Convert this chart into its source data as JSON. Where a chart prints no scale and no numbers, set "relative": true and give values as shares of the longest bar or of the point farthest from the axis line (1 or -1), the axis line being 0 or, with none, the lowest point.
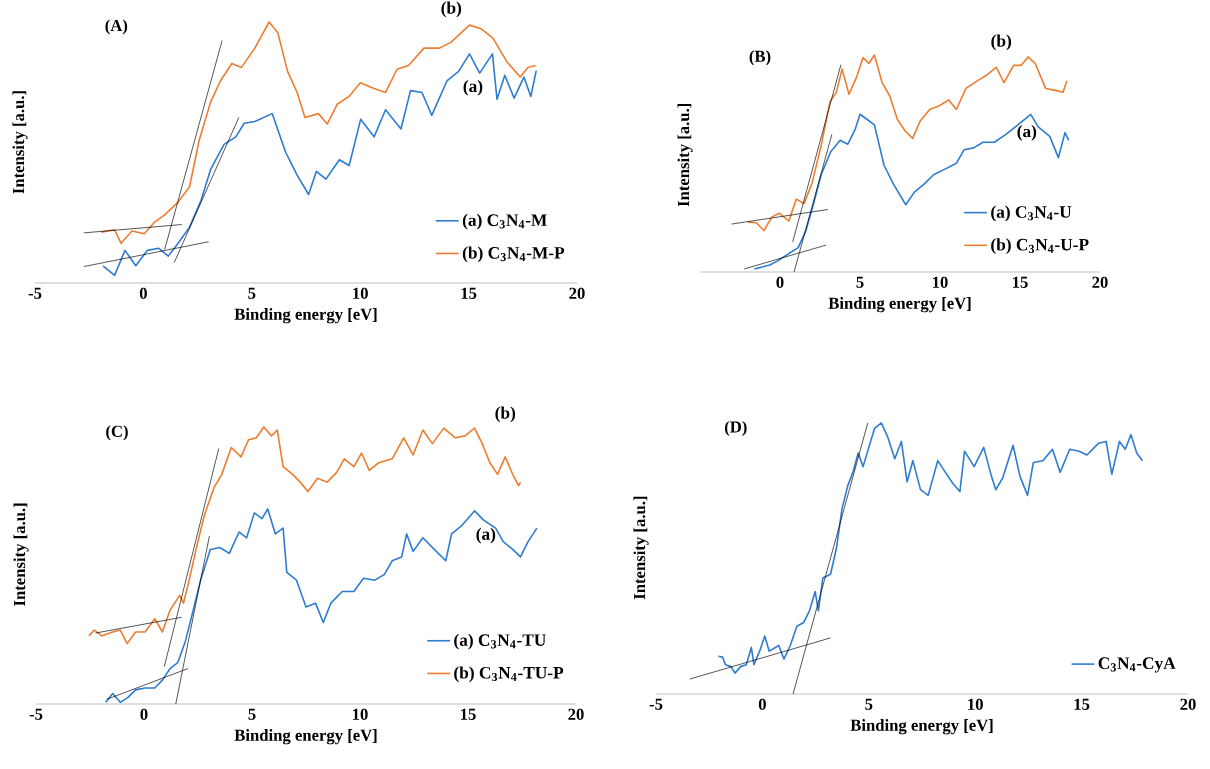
{
  "chart_data": [
    {
      "type": "line",
      "title": "(A)",
      "xlabel": "Binding energy [eV]",
      "ylabel": "Intensity [a.u.]",
      "relative": true,
      "legend": "bottom right",
      "xlim": [
        -5,
        20
      ],
      "xticks": [
        -5,
        0,
        5,
        10,
        15,
        20
      ],
      "annotations": [
        "(b)",
        "(a)"
      ],
      "series": [
        {
          "name": "(a) C$_{3}$N$_{4}$-M",
          "color": "#2e7cd0",
          "x": [
            -1.86,
            -1.33,
            -0.85,
            -0.35,
            0.18,
            0.71,
            1.15,
            1.6,
            2.13,
            2.66,
            3.1,
            3.72,
            4.26,
            4.65,
            5.14,
            5.94,
            6.56,
            7.09,
            7.62,
            7.98,
            8.42,
            9.04,
            9.49,
            10.02,
            10.64,
            11.17,
            11.88,
            12.32,
            12.85,
            13.3,
            14.0,
            14.54,
            15.04,
            15.51,
            16.1,
            16.31,
            16.67,
            17.1,
            17.55,
            17.87,
            18.12
          ],
          "values": [
            0.066,
            0.029,
            0.125,
            0.066,
            0.125,
            0.133,
            0.103,
            0.152,
            0.214,
            0.317,
            0.435,
            0.531,
            0.56,
            0.612,
            0.619,
            0.649,
            0.501,
            0.413,
            0.339,
            0.428,
            0.398,
            0.472,
            0.45,
            0.627,
            0.56,
            0.664,
            0.59,
            0.737,
            0.73,
            0.642,
            0.774,
            0.811,
            0.878,
            0.804,
            0.878,
            0.704,
            0.796,
            0.708,
            0.789,
            0.715,
            0.814
          ]
        },
        {
          "name": "(b) C$_{3}$N$_{4}$-M-P",
          "color": "#ed7d31",
          "x": [
            -1.95,
            -1.33,
            -1.03,
            -0.53,
            0.04,
            0.5,
            0.98,
            1.6,
            2.13,
            2.57,
            3.1,
            3.55,
            4.08,
            4.52,
            5.14,
            5.8,
            6.2,
            6.65,
            7.09,
            7.45,
            8.07,
            8.48,
            8.95,
            9.49,
            10.0,
            10.64,
            11.17,
            11.7,
            12.23,
            12.94,
            13.65,
            14.18,
            15.04,
            15.6,
            16.13,
            16.76,
            17.38,
            17.73,
            18.09
          ],
          "values": [
            0.195,
            0.204,
            0.152,
            0.199,
            0.189,
            0.232,
            0.261,
            0.31,
            0.369,
            0.546,
            0.693,
            0.774,
            0.841,
            0.826,
            0.9,
            1.0,
            0.959,
            0.811,
            0.73,
            0.634,
            0.649,
            0.609,
            0.686,
            0.715,
            0.767,
            0.745,
            0.73,
            0.819,
            0.833,
            0.9,
            0.9,
            0.922,
            0.988,
            0.973,
            0.937,
            0.848,
            0.789,
            0.826,
            0.833
          ]
        },
        {
          "type": "line",
          "color": "#000000",
          "x": [
            -2.75,
            1.77
          ],
          "values": [
            0.192,
            0.224
          ]
        },
        {
          "type": "line",
          "color": "#000000",
          "x": [
            0.98,
            3.63
          ],
          "values": [
            0.128,
            0.929
          ]
        },
        {
          "type": "line",
          "color": "#000000",
          "x": [
            -2.75,
            3.01
          ],
          "values": [
            0.063,
            0.158
          ]
        },
        {
          "type": "line",
          "color": "#000000",
          "x": [
            1.42,
            4.4
          ],
          "values": [
            0.078,
            0.634
          ]
        }
      ]
    },
    {
      "type": "line",
      "title": "(B)",
      "xlabel": "Binding energy [eV]",
      "ylabel": "Intensity [a.u.]",
      "relative": true,
      "legend": "bottom right",
      "xlim": [
        -5,
        20
      ],
      "xticks": [
        0,
        5,
        10,
        15,
        20
      ],
      "annotations": [
        "(b)",
        "(a)"
      ],
      "series": [
        {
          "name": "(a) C$_{3}$N$_{4}$-U",
          "color": "#2e7cd0",
          "x": [
            -1.6,
            -1.12,
            -0.64,
            -0.17,
            0.55,
            1.14,
            1.62,
            2.1,
            2.57,
            3.17,
            3.76,
            4.24,
            4.71,
            5.0,
            5.43,
            5.9,
            6.5,
            7.1,
            7.86,
            8.4,
            8.99,
            9.6,
            10.31,
            11.02,
            11.5,
            12.1,
            12.69,
            13.4,
            14.12,
            14.71,
            15.31,
            15.67,
            16.14,
            16.86,
            17.4,
            17.81,
            18.05
          ],
          "values": [
            0.014,
            0.023,
            0.032,
            0.05,
            0.085,
            0.112,
            0.191,
            0.315,
            0.448,
            0.554,
            0.607,
            0.589,
            0.66,
            0.727,
            0.704,
            0.678,
            0.492,
            0.404,
            0.31,
            0.368,
            0.404,
            0.448,
            0.474,
            0.501,
            0.563,
            0.572,
            0.598,
            0.598,
            0.634,
            0.669,
            0.704,
            0.726,
            0.669,
            0.625,
            0.527,
            0.642,
            0.607
          ]
        },
        {
          "name": "(b) C$_{3}$N$_{4}$-U-P",
          "color": "#ed7d31",
          "x": [
            -2.0,
            -1.48,
            -1.0,
            -0.52,
            -0.05,
            0.55,
            1.02,
            1.5,
            1.98,
            2.57,
            3.12,
            3.52,
            3.88,
            4.31,
            4.79,
            5.19,
            5.55,
            5.9,
            6.38,
            6.86,
            7.33,
            7.81,
            8.29,
            8.76,
            9.36,
            9.95,
            10.55,
            11.02,
            11.62,
            12.33,
            12.93,
            13.52,
            14.0,
            14.6,
            15.07,
            15.5,
            15.95,
            16.6,
            17.21,
            17.69,
            17.93
          ],
          "values": [
            0.23,
            0.227,
            0.191,
            0.253,
            0.271,
            0.235,
            0.336,
            0.315,
            0.404,
            0.581,
            0.784,
            0.828,
            0.935,
            0.819,
            0.899,
            0.988,
            0.961,
            1.0,
            0.873,
            0.811,
            0.704,
            0.651,
            0.616,
            0.696,
            0.749,
            0.766,
            0.793,
            0.749,
            0.846,
            0.881,
            0.908,
            0.943,
            0.873,
            0.952,
            0.952,
            0.991,
            0.961,
            0.846,
            0.837,
            0.828,
            0.881
          ]
        },
        {
          "type": "line",
          "color": "#000000",
          "x": [
            -3.02,
            3.0
          ],
          "values": [
            0.221,
            0.288
          ]
        },
        {
          "type": "line",
          "color": "#000000",
          "x": [
            0.79,
            3.81
          ],
          "values": [
            0.138,
            0.956
          ]
        },
        {
          "type": "line",
          "color": "#000000",
          "x": [
            -2.24,
            2.88
          ],
          "values": [
            0.014,
            0.124
          ]
        },
        {
          "type": "line",
          "color": "#000000",
          "x": [
            0.88,
            3.24
          ],
          "values": [
            0.0,
            0.634
          ]
        }
      ]
    },
    {
      "type": "line",
      "title": "(C)",
      "xlabel": "Binding energy [eV]",
      "ylabel": "Intensity [a.u.]",
      "relative": true,
      "legend": "bottom right",
      "xlim": [
        -5,
        20
      ],
      "xticks": [
        -5,
        0,
        5,
        10,
        15,
        20
      ],
      "annotations": [
        "(b)",
        "(a)"
      ],
      "series": [
        {
          "name": "(a) C$_{3}$N$_{4}$-TU",
          "color": "#2e7cd0",
          "x": [
            -1.77,
            -1.45,
            -1.1,
            -0.74,
            -0.39,
            0.05,
            0.5,
            0.85,
            1.21,
            1.56,
            1.91,
            2.27,
            2.62,
            3.07,
            3.51,
            3.95,
            4.4,
            4.75,
            5.11,
            5.46,
            5.73,
            6.08,
            6.44,
            6.61,
            7.06,
            7.5,
            7.94,
            8.3,
            8.65,
            9.18,
            9.72,
            10.16,
            10.69,
            11.13,
            11.49,
            11.93,
            12.16,
            12.46,
            12.91,
            13.44,
            13.97,
            14.24,
            14.68,
            15.3,
            15.74,
            16.28,
            16.63,
            17.07,
            17.43,
            17.78,
            18.19
          ],
          "values": [
            0.006,
            0.038,
            0.006,
            0.024,
            0.051,
            0.058,
            0.058,
            0.086,
            0.128,
            0.149,
            0.225,
            0.336,
            0.447,
            0.558,
            0.565,
            0.544,
            0.621,
            0.6,
            0.69,
            0.669,
            0.704,
            0.614,
            0.635,
            0.475,
            0.447,
            0.35,
            0.364,
            0.294,
            0.364,
            0.406,
            0.406,
            0.454,
            0.447,
            0.468,
            0.517,
            0.531,
            0.614,
            0.551,
            0.6,
            0.558,
            0.517,
            0.614,
            0.642,
            0.697,
            0.663,
            0.635,
            0.586,
            0.558,
            0.531,
            0.586,
            0.635
          ]
        },
        {
          "name": "(b) C$_{3}$N$_{4}$-TU-P",
          "color": "#ed7d31",
          "x": [
            -2.55,
            -2.3,
            -1.95,
            -1.45,
            -1.1,
            -0.78,
            -0.39,
            0.05,
            0.5,
            0.85,
            1.21,
            1.65,
            1.83,
            2.09,
            2.45,
            2.8,
            3.24,
            3.6,
            4.04,
            4.49,
            4.84,
            5.2,
            5.55,
            5.9,
            6.17,
            6.44,
            6.88,
            7.23,
            7.59,
            8.03,
            8.48,
            8.92,
            9.27,
            9.72,
            10.07,
            10.43,
            10.87,
            11.49,
            12.02,
            12.46,
            12.91,
            13.35,
            13.88,
            14.41,
            14.86,
            15.3,
            15.66,
            16.01,
            16.37,
            16.72,
            17.07,
            17.34,
            17.43
          ],
          "values": [
            0.246,
            0.267,
            0.246,
            0.26,
            0.267,
            0.218,
            0.26,
            0.26,
            0.308,
            0.26,
            0.339,
            0.392,
            0.364,
            0.447,
            0.572,
            0.683,
            0.781,
            0.829,
            0.926,
            0.892,
            0.954,
            0.961,
            1.0,
            0.968,
            0.989,
            0.857,
            0.829,
            0.801,
            0.767,
            0.815,
            0.801,
            0.836,
            0.885,
            0.857,
            0.906,
            0.843,
            0.871,
            0.885,
            0.961,
            0.899,
            0.989,
            0.94,
            0.996,
            0.961,
            0.968,
            0.996,
            0.94,
            0.871,
            0.829,
            0.892,
            0.829,
            0.788,
            0.801
          ]
        },
        {
          "type": "line",
          "color": "#000000",
          "x": [
            -2.25,
            1.74
          ],
          "values": [
            0.256,
            0.313
          ]
        },
        {
          "type": "line",
          "color": "#000000",
          "x": [
            0.94,
            3.46
          ],
          "values": [
            0.135,
            0.922
          ]
        },
        {
          "type": "line",
          "color": "#000000",
          "x": [
            -1.72,
            2.04
          ],
          "values": [
            0.017,
            0.128
          ]
        },
        {
          "type": "line",
          "color": "#000000",
          "x": [
            1.47,
            3.03
          ],
          "values": [
            0.0,
            0.607
          ]
        }
      ]
    },
    {
      "type": "line",
      "title": "(D)",
      "xlabel": "Binding energy [eV]",
      "ylabel": "Intensity [a.u.]",
      "relative": true,
      "legend": "bottom right",
      "xlim": [
        -5,
        20
      ],
      "xticks": [
        -5,
        0,
        5,
        10,
        15,
        20
      ],
      "series": [
        {
          "name": "C$_{3}$N$_{4}$-CyA",
          "color": "#2e7cd0",
          "x": [
            -2.07,
            -1.87,
            -1.74,
            -1.47,
            -1.29,
            -1.03,
            -0.76,
            -0.52,
            -0.4,
            -0.13,
            0.11,
            0.32,
            0.77,
            1.01,
            1.31,
            1.62,
            1.94,
            2.21,
            2.48,
            2.63,
            2.84,
            3.2,
            3.47,
            3.74,
            4.01,
            4.28,
            4.5,
            4.73,
            5.0,
            5.27,
            5.59,
            5.9,
            6.22,
            6.53,
            6.8,
            7.07,
            7.43,
            7.79,
            8.24,
            8.6,
            8.96,
            9.28,
            9.5,
            9.95,
            10.4,
            10.76,
            10.97,
            11.29,
            11.78,
            12.1,
            12.46,
            12.73,
            13.18,
            13.63,
            13.99,
            14.44,
            14.89,
            15.25,
            15.79,
            16.15,
            16.42,
            16.78,
            17.05,
            17.32,
            17.59,
            17.86
          ],
          "values": [
            0.139,
            0.136,
            0.108,
            0.101,
            0.077,
            0.101,
            0.108,
            0.172,
            0.108,
            0.158,
            0.214,
            0.158,
            0.179,
            0.129,
            0.179,
            0.25,
            0.264,
            0.307,
            0.378,
            0.307,
            0.428,
            0.442,
            0.534,
            0.683,
            0.768,
            0.825,
            0.889,
            0.839,
            0.91,
            0.98,
            1.0,
            0.946,
            0.868,
            0.932,
            0.783,
            0.861,
            0.754,
            0.733,
            0.861,
            0.818,
            0.776,
            0.747,
            0.896,
            0.839,
            0.91,
            0.804,
            0.754,
            0.797,
            0.918,
            0.804,
            0.733,
            0.854,
            0.861,
            0.903,
            0.818,
            0.903,
            0.896,
            0.882,
            0.925,
            0.932,
            0.811,
            0.932,
            0.903,
            0.957,
            0.889,
            0.861
          ]
        },
        {
          "type": "line",
          "color": "#000000",
          "x": [
            -3.42,
            3.2
          ],
          "values": [
            0.055,
            0.207
          ]
        },
        {
          "type": "line",
          "color": "#000000",
          "x": [
            1.44,
            4.95
          ],
          "values": [
            0.0,
            1.0
          ]
        }
      ]
    }
  ]
}
